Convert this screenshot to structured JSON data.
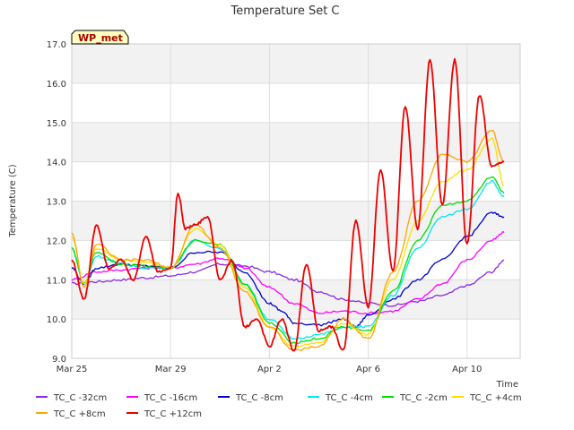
{
  "chart_data": {
    "type": "line",
    "title": "Temperature Set C",
    "xlabel": "Time",
    "ylabel": "Temperature (C)",
    "site_label": "WP_met",
    "ylim": [
      9.0,
      17.0
    ],
    "xlim_days": "Mar 25 to Apr 12",
    "yticks": [
      "9.0",
      "10.0",
      "11.0",
      "12.0",
      "13.0",
      "14.0",
      "15.0",
      "16.0",
      "17.0"
    ],
    "xticks": [
      {
        "label": "Mar 25",
        "day": 0
      },
      {
        "label": "Mar 29",
        "day": 4
      },
      {
        "label": "Apr 2",
        "day": 8
      },
      {
        "label": "Apr 6",
        "day": 12
      },
      {
        "label": "Apr 10",
        "day": 16
      }
    ],
    "grid": true,
    "legend_position": "bottom",
    "series": [
      {
        "name": "TC_C -32cm",
        "color": "#8a2be2",
        "x": [
          0,
          1,
          2,
          3,
          4,
          5,
          6,
          7,
          8,
          9,
          10,
          11,
          12,
          13,
          14,
          15,
          16,
          17,
          17.5
        ],
        "y": [
          10.9,
          10.95,
          11.0,
          11.05,
          11.1,
          11.2,
          11.4,
          11.35,
          11.2,
          11.0,
          10.7,
          10.5,
          10.4,
          10.35,
          10.45,
          10.6,
          10.85,
          11.2,
          11.5
        ]
      },
      {
        "name": "TC_C -16cm",
        "color": "#ff00ff",
        "x": [
          0,
          1,
          2,
          3,
          4,
          5,
          6,
          7,
          8,
          9,
          10,
          11,
          12,
          13,
          14,
          15,
          16,
          17,
          17.5
        ],
        "y": [
          11.0,
          11.2,
          11.25,
          11.3,
          11.3,
          11.4,
          11.55,
          11.3,
          10.8,
          10.4,
          10.15,
          10.2,
          10.15,
          10.2,
          10.5,
          10.9,
          11.5,
          12.0,
          12.2
        ]
      },
      {
        "name": "TC_C -8cm",
        "color": "#0000cd",
        "x": [
          0,
          0.5,
          1,
          2,
          3,
          4,
          5,
          6,
          7,
          8,
          8.5,
          9,
          10,
          11,
          11.5,
          12,
          13,
          14,
          15,
          16,
          17,
          17.5
        ],
        "y": [
          11.3,
          10.9,
          11.3,
          11.4,
          11.35,
          11.3,
          11.7,
          11.7,
          11.2,
          10.4,
          10.2,
          9.9,
          9.85,
          10.0,
          9.8,
          10.1,
          10.5,
          11.0,
          11.5,
          12.1,
          12.7,
          12.6
        ]
      },
      {
        "name": "TC_C -4cm",
        "color": "#00e5ee",
        "x": [
          0,
          0.5,
          1,
          2,
          3,
          4,
          5,
          6,
          7,
          8,
          9,
          10,
          11,
          12,
          13,
          14,
          15,
          16,
          17,
          17.5
        ],
        "y": [
          11.8,
          10.9,
          11.6,
          11.4,
          11.3,
          11.3,
          12.0,
          11.8,
          10.9,
          10.0,
          9.5,
          9.6,
          9.8,
          9.8,
          10.6,
          11.8,
          12.6,
          12.8,
          13.5,
          13.1
        ]
      },
      {
        "name": "TC_C -2cm",
        "color": "#00dd00",
        "x": [
          0,
          0.5,
          1,
          2,
          3,
          4,
          5,
          6,
          7,
          8,
          9,
          10,
          11,
          12,
          13,
          14,
          15,
          16,
          17,
          17.5
        ],
        "y": [
          11.8,
          10.9,
          11.7,
          11.4,
          11.35,
          11.3,
          12.0,
          11.9,
          10.9,
          9.9,
          9.4,
          9.5,
          9.8,
          9.7,
          10.7,
          12.0,
          12.9,
          13.0,
          13.6,
          13.2
        ]
      },
      {
        "name": "TC_C +4cm",
        "color": "#ffdd00",
        "x": [
          0,
          0.5,
          1,
          2,
          3,
          4,
          5,
          6,
          7,
          8,
          9,
          10,
          11,
          12,
          13,
          14,
          15,
          16,
          17,
          17.5
        ],
        "y": [
          12.1,
          10.9,
          11.8,
          11.5,
          11.45,
          11.3,
          12.3,
          11.9,
          10.8,
          9.8,
          9.3,
          9.4,
          9.9,
          9.6,
          11.0,
          12.5,
          13.5,
          13.8,
          14.6,
          13.4
        ]
      },
      {
        "name": "TC_C +8cm",
        "color": "#ffa500",
        "x": [
          0,
          0.5,
          1,
          2,
          3,
          4,
          5,
          6,
          7,
          8,
          9,
          10,
          11,
          12,
          13,
          14,
          15,
          16,
          17,
          17.5
        ],
        "y": [
          12.2,
          10.8,
          11.9,
          11.5,
          11.5,
          11.3,
          12.4,
          11.8,
          10.7,
          9.8,
          9.2,
          9.3,
          10.0,
          9.5,
          11.2,
          13.0,
          14.2,
          14.0,
          14.8,
          14.0
        ]
      },
      {
        "name": "TC_C +12cm",
        "color": "#ee0000",
        "x": [
          0,
          0.5,
          1,
          1.5,
          2,
          2.5,
          3,
          3.5,
          4,
          4.3,
          4.6,
          5,
          5.5,
          6,
          6.5,
          7,
          7.5,
          8,
          8.5,
          9,
          9.5,
          10,
          10.5,
          11,
          11.5,
          12,
          12.5,
          13,
          13.5,
          14,
          14.5,
          15,
          15.5,
          16,
          16.5,
          17,
          17.5
        ],
        "y": [
          11.5,
          10.5,
          12.4,
          11.3,
          11.5,
          11.0,
          12.1,
          11.2,
          11.3,
          13.2,
          12.3,
          12.4,
          12.6,
          11.0,
          11.5,
          9.8,
          10.0,
          9.3,
          10.0,
          9.2,
          11.4,
          9.7,
          9.8,
          9.2,
          12.5,
          10.3,
          13.8,
          11.2,
          15.4,
          12.3,
          16.6,
          12.9,
          16.6,
          11.9,
          15.7,
          13.9,
          14.0
        ]
      }
    ]
  }
}
